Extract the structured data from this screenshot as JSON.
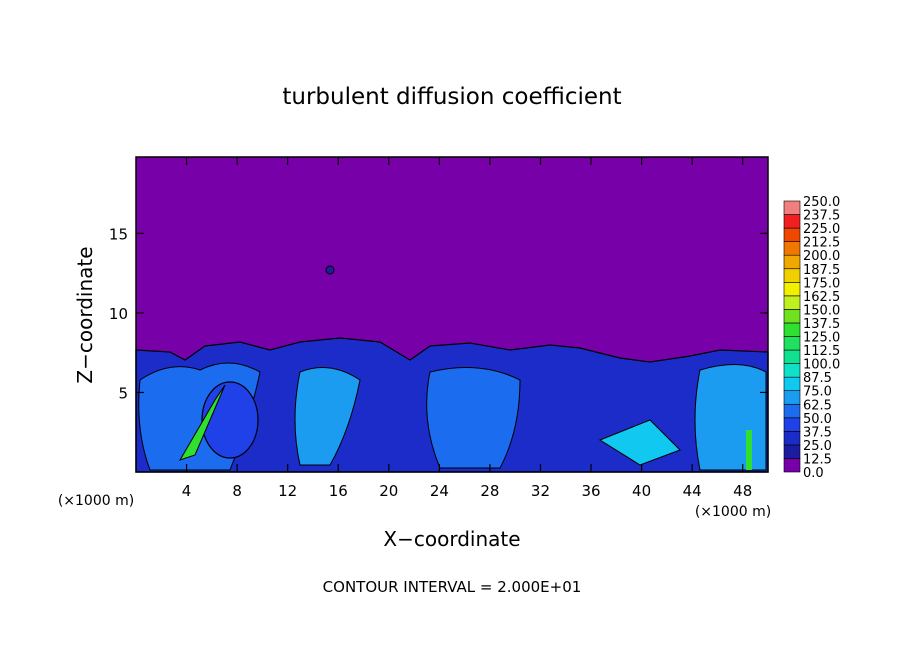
{
  "chart_data": {
    "type": "contour",
    "title": "turbulent diffusion coefficient",
    "x_label": "X−coordinate",
    "y_label": "Z−coordinate",
    "unit_labels": [
      "(×1000 m)",
      "(×1000 m)"
    ],
    "footnote": "CONTOUR INTERVAL = 2.000E+01",
    "xlim": [
      0,
      50
    ],
    "ylim": [
      0,
      19.8
    ],
    "xticks": [
      4,
      8,
      12,
      16,
      20,
      24,
      28,
      32,
      36,
      40,
      44,
      48
    ],
    "yticks": [
      5,
      10,
      15
    ],
    "colorbar": {
      "levels": [
        {
          "value": 0,
          "label": "0.0"
        },
        {
          "value": 12.5,
          "label": "12.5"
        },
        {
          "value": 25,
          "label": "25.0"
        },
        {
          "value": 37.5,
          "label": "37.5"
        },
        {
          "value": 50,
          "label": "50.0"
        },
        {
          "value": 62.5,
          "label": "62.5"
        },
        {
          "value": 75,
          "label": "75.0"
        },
        {
          "value": 87.5,
          "label": "87.5"
        },
        {
          "value": 100,
          "label": "100.0"
        },
        {
          "value": 112.5,
          "label": "112.5"
        },
        {
          "value": 125,
          "label": "125.0"
        },
        {
          "value": 137.5,
          "label": "137.5"
        },
        {
          "value": 150,
          "label": "150.0"
        },
        {
          "value": 162.5,
          "label": "162.5"
        },
        {
          "value": 175,
          "label": "175.0"
        },
        {
          "value": 187.5,
          "label": "187.5"
        },
        {
          "value": 200,
          "label": "200.0"
        },
        {
          "value": 212.5,
          "label": "212.5"
        },
        {
          "value": 225,
          "label": "225.0"
        },
        {
          "value": 237.5,
          "label": "237.5"
        },
        {
          "value": 250,
          "label": "250.0"
        }
      ],
      "colors": [
        "#7800a8",
        "#1c1ca0",
        "#1c2cc8",
        "#2040e8",
        "#1c6cf0",
        "#1c9cf0",
        "#10c8f0",
        "#10e0c8",
        "#10e090",
        "#20e060",
        "#30e030",
        "#70e020",
        "#c0f020",
        "#f0f000",
        "#f0d000",
        "#f0a800",
        "#f07800",
        "#f04800",
        "#f02020",
        "#f08080"
      ]
    }
  }
}
